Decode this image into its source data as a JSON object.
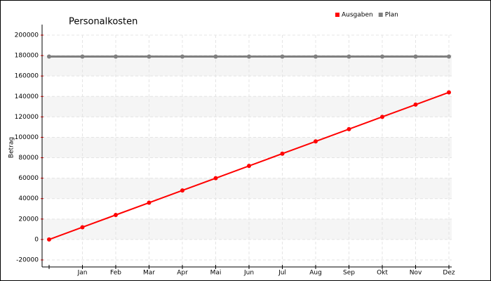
{
  "chart_data": {
    "type": "line",
    "title": "Personalkosten",
    "y_label": "Betrag",
    "categories": [
      null,
      "Jan",
      "Feb",
      "Mar",
      "Apr",
      "Mai",
      "Jun",
      "Jul",
      "Aug",
      "Sep",
      "Okt",
      "Nov",
      "Dez"
    ],
    "series": [
      {
        "name": "Ausgaben",
        "color": "#ff0000",
        "values": [
          0,
          12000,
          24000,
          36000,
          48000,
          60000,
          72000,
          84000,
          96000,
          108000,
          120000,
          132000,
          144000
        ]
      },
      {
        "name": "Plan",
        "color": "#808080",
        "values": [
          179000,
          179000,
          179000,
          179000,
          179000,
          179000,
          179000,
          179000,
          179000,
          179000,
          179000,
          179000,
          179000
        ]
      }
    ],
    "ylim": [
      -20000,
      200000
    ],
    "yticks": [
      -20000,
      0,
      20000,
      40000,
      60000,
      80000,
      100000,
      120000,
      140000,
      160000,
      180000,
      200000
    ],
    "grid": true,
    "legend": "top-right"
  }
}
